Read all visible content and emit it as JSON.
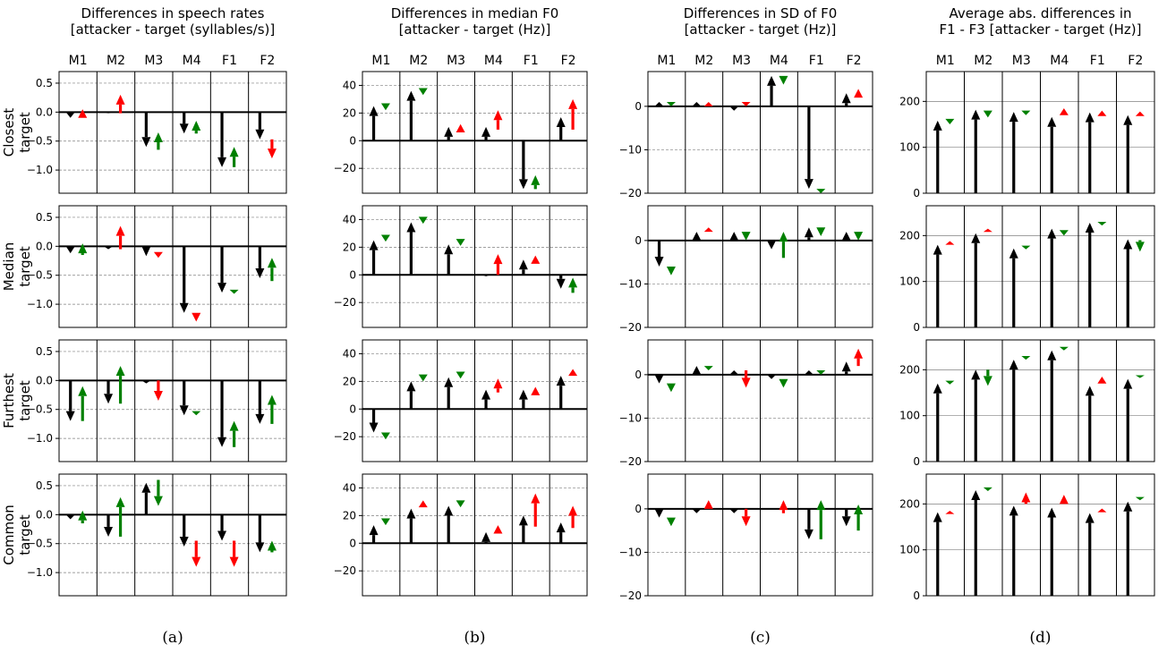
{
  "chart_data": {
    "type": "arrow-grid",
    "columns": [
      "M1",
      "M2",
      "M3",
      "M4",
      "F1",
      "F2"
    ],
    "rows": [
      "Closest\ntarget",
      "Median\ntarget",
      "Furthest\ntarget",
      "Common\ntarget"
    ],
    "colors": {
      "base": "#000000",
      "better": "#008000",
      "worse": "#ff0000"
    },
    "panels": [
      {
        "label": "(a)",
        "title": [
          "Differences in speech rates",
          "[attacker - target (syllables/s)]"
        ],
        "ylim": [
          -1.4,
          0.7
        ],
        "yticks": [
          0.5,
          0.0,
          -0.5,
          -1.0
        ],
        "ytick_labels": [
          "0.5",
          "0.0",
          "−0.5",
          "−1.0"
        ],
        "grid": "dashed",
        "cells": [
          [
            {
              "b": -0.1,
              "e": [
                -0.1,
                0.05
              ],
              "c": "worse"
            },
            {
              "b": -0.02,
              "e": [
                -0.02,
                0.3
              ],
              "c": "worse"
            },
            {
              "b": -0.6,
              "e": [
                -0.65,
                -0.35
              ],
              "c": "better"
            },
            {
              "b": -0.37,
              "e": [
                -0.37,
                -0.15
              ],
              "c": "better"
            },
            {
              "b": -0.95,
              "e": [
                -0.95,
                -0.6
              ],
              "c": "better"
            },
            {
              "b": -0.47,
              "e": [
                -0.47,
                -0.8
              ],
              "c": "worse"
            }
          ],
          [
            {
              "b": -0.12,
              "e": [
                -0.15,
                0.05
              ],
              "c": "better"
            },
            {
              "b": -0.05,
              "e": [
                -0.05,
                0.35
              ],
              "c": "worse"
            },
            {
              "b": -0.17,
              "e": [
                -0.1,
                -0.2
              ],
              "c": "worse"
            },
            {
              "b": -1.15,
              "e": [
                -1.15,
                -1.3
              ],
              "c": "worse"
            },
            {
              "b": -0.8,
              "e": [
                -0.75,
                -0.82
              ],
              "c": "better"
            },
            {
              "b": -0.55,
              "e": [
                -0.6,
                -0.2
              ],
              "c": "better"
            }
          ],
          [
            {
              "b": -0.7,
              "e": [
                -0.7,
                -0.1
              ],
              "c": "better"
            },
            {
              "b": -0.4,
              "e": [
                -0.4,
                0.25
              ],
              "c": "better"
            },
            {
              "b": -0.05,
              "e": [
                0.0,
                -0.35
              ],
              "c": "worse"
            },
            {
              "b": -0.6,
              "e": [
                -0.53,
                -0.6
              ],
              "c": "better"
            },
            {
              "b": -1.15,
              "e": [
                -1.15,
                -0.7
              ],
              "c": "better"
            },
            {
              "b": -0.75,
              "e": [
                -0.75,
                -0.25
              ],
              "c": "better"
            }
          ],
          [
            {
              "b": -0.08,
              "e": [
                -0.15,
                0.07
              ],
              "c": "better"
            },
            {
              "b": -0.38,
              "e": [
                -0.38,
                0.3
              ],
              "c": "better"
            },
            {
              "b": 0.55,
              "e": [
                0.6,
                0.15
              ],
              "c": "better"
            },
            {
              "b": -0.55,
              "e": [
                -0.45,
                -0.9
              ],
              "c": "worse"
            },
            {
              "b": -0.45,
              "e": [
                -0.45,
                -0.9
              ],
              "c": "worse"
            },
            {
              "b": -0.65,
              "e": [
                -0.65,
                -0.45
              ],
              "c": "better"
            }
          ]
        ]
      },
      {
        "label": "(b)",
        "title": [
          "Differences in median F0",
          "[attacker - target (Hz)]"
        ],
        "ylim": [
          -38,
          50
        ],
        "yticks": [
          40,
          20,
          0,
          -20
        ],
        "ytick_labels": [
          "40",
          "20",
          "0",
          "−20"
        ],
        "grid": "dashed",
        "cells": [
          [
            {
              "b": 25,
              "e": [
                27,
                22
              ],
              "c": "better"
            },
            {
              "b": 36,
              "e": [
                38,
                33
              ],
              "c": "better"
            },
            {
              "b": 10,
              "e": [
                6,
                12
              ],
              "c": "worse"
            },
            {
              "b": 10,
              "e": [
                8,
                22
              ],
              "c": "worse"
            },
            {
              "b": -35,
              "e": [
                -35,
                -25
              ],
              "c": "better"
            },
            {
              "b": 17,
              "e": [
                8,
                30
              ],
              "c": "worse"
            }
          ],
          [
            {
              "b": 25,
              "e": [
                29,
                24
              ],
              "c": "better"
            },
            {
              "b": 38,
              "e": [
                42,
                37
              ],
              "c": "better"
            },
            {
              "b": 22,
              "e": [
                26,
                21
              ],
              "c": "better"
            },
            {
              "b": -1,
              "e": [
                0,
                15
              ],
              "c": "worse"
            },
            {
              "b": 11,
              "e": [
                8,
                14
              ],
              "c": "worse"
            },
            {
              "b": -10,
              "e": [
                -13,
                -2
              ],
              "c": "better"
            }
          ],
          [
            {
              "b": -17,
              "e": [
                -17,
                -22
              ],
              "c": "better"
            },
            {
              "b": 20,
              "e": [
                25,
                20
              ],
              "c": "better"
            },
            {
              "b": 23,
              "e": [
                27,
                22
              ],
              "c": "better"
            },
            {
              "b": 14,
              "e": [
                12,
                22
              ],
              "c": "worse"
            },
            {
              "b": 14,
              "e": [
                10,
                16
              ],
              "c": "worse"
            },
            {
              "b": 24,
              "e": [
                24,
                29
              ],
              "c": "worse"
            }
          ],
          [
            {
              "b": 13,
              "e": [
                18,
                13
              ],
              "c": "better"
            },
            {
              "b": 25,
              "e": [
                26,
                31
              ],
              "c": "worse"
            },
            {
              "b": 27,
              "e": [
                31,
                26
              ],
              "c": "better"
            },
            {
              "b": 8,
              "e": [
                7,
                13
              ],
              "c": "worse"
            },
            {
              "b": 20,
              "e": [
                12,
                36
              ],
              "c": "worse"
            },
            {
              "b": 15,
              "e": [
                11,
                27
              ],
              "c": "worse"
            }
          ]
        ]
      },
      {
        "label": "(c)",
        "title": [
          "Differences in SD of F0",
          "[attacker - target (Hz)]"
        ],
        "ylim": [
          -20,
          8
        ],
        "yticks": [
          0,
          -10,
          -20
        ],
        "ytick_labels": [
          "0",
          "−10",
          "−20"
        ],
        "grid": "dashed",
        "cells": [
          [
            {
              "b": 1,
              "e": [
                1,
                0
              ],
              "c": "better"
            },
            {
              "b": 1,
              "e": [
                0,
                1
              ],
              "c": "worse"
            },
            {
              "b": -1,
              "e": [
                1,
                0
              ],
              "c": "worse"
            },
            {
              "b": 7,
              "e": [
                7,
                5
              ],
              "c": "better"
            },
            {
              "b": -19,
              "e": [
                -19,
                -20
              ],
              "c": "better"
            },
            {
              "b": 3,
              "e": [
                2,
                4
              ],
              "c": "worse"
            }
          ],
          [
            {
              "b": -6,
              "e": [
                -6,
                -8
              ],
              "c": "better"
            },
            {
              "b": 2,
              "e": [
                2,
                3
              ],
              "c": "worse"
            },
            {
              "b": 2,
              "e": [
                2,
                0
              ],
              "c": "better"
            },
            {
              "b": -2,
              "e": [
                -4,
                2
              ],
              "c": "better"
            },
            {
              "b": 3,
              "e": [
                3,
                1
              ],
              "c": "better"
            },
            {
              "b": 2,
              "e": [
                2,
                0
              ],
              "c": "better"
            }
          ],
          [
            {
              "b": -2,
              "e": [
                -2,
                -4
              ],
              "c": "better"
            },
            {
              "b": 2,
              "e": [
                2,
                1
              ],
              "c": "better"
            },
            {
              "b": 1,
              "e": [
                1,
                -3
              ],
              "c": "worse"
            },
            {
              "b": -1,
              "e": [
                -1,
                -3
              ],
              "c": "better"
            },
            {
              "b": 1,
              "e": [
                1,
                0
              ],
              "c": "better"
            },
            {
              "b": 3,
              "e": [
                2,
                6
              ],
              "c": "worse"
            }
          ],
          [
            {
              "b": -2,
              "e": [
                -2,
                -4
              ],
              "c": "better"
            },
            {
              "b": -1,
              "e": [
                0,
                2
              ],
              "c": "worse"
            },
            {
              "b": -1,
              "e": [
                0,
                -4
              ],
              "c": "worse"
            },
            {
              "b": 0,
              "e": [
                -1,
                2
              ],
              "c": "worse"
            },
            {
              "b": -7,
              "e": [
                -7,
                2
              ],
              "c": "better"
            },
            {
              "b": -4,
              "e": [
                -5,
                1
              ],
              "c": "better"
            }
          ]
        ]
      },
      {
        "label": "(d)",
        "title": [
          "Average abs. differences in",
          "F1 - F3 [attacker - target (Hz)]"
        ],
        "ylim": [
          0,
          265
        ],
        "yticks": [
          200,
          100,
          0
        ],
        "ytick_labels": [
          "200",
          "100",
          "0"
        ],
        "grid": "solid",
        "cells": [
          [
            {
              "b": 158,
              "e": [
                162,
                150
              ],
              "c": "better"
            },
            {
              "b": 182,
              "e": [
                180,
                165
              ],
              "c": "better"
            },
            {
              "b": 177,
              "e": [
                180,
                170
              ],
              "c": "better"
            },
            {
              "b": 166,
              "e": [
                170,
                185
              ],
              "c": "worse"
            },
            {
              "b": 176,
              "e": [
                168,
                180
              ],
              "c": "worse"
            },
            {
              "b": 170,
              "e": [
                168,
                178
              ],
              "c": "worse"
            }
          ],
          [
            {
              "b": 180,
              "e": [
                180,
                188
              ],
              "c": "worse"
            },
            {
              "b": 205,
              "e": [
                208,
                215
              ],
              "c": "worse"
            },
            {
              "b": 172,
              "e": [
                178,
                170
              ],
              "c": "better"
            },
            {
              "b": 215,
              "e": [
                212,
                200
              ],
              "c": "better"
            },
            {
              "b": 228,
              "e": [
                230,
                222
              ],
              "c": "better"
            },
            {
              "b": 192,
              "e": [
                190,
                165
              ],
              "c": "better"
            }
          ],
          [
            {
              "b": 170,
              "e": [
                176,
                168
              ],
              "c": "better"
            },
            {
              "b": 200,
              "e": [
                200,
                165
              ],
              "c": "better"
            },
            {
              "b": 222,
              "e": [
                230,
                222
              ],
              "c": "better"
            },
            {
              "b": 242,
              "e": [
                250,
                242
              ],
              "c": "better"
            },
            {
              "b": 165,
              "e": [
                170,
                185
              ],
              "c": "worse"
            },
            {
              "b": 180,
              "e": [
                188,
                182
              ],
              "c": "better"
            }
          ],
          [
            {
              "b": 182,
              "e": [
                178,
                185
              ],
              "c": "worse"
            },
            {
              "b": 230,
              "e": [
                236,
                228
              ],
              "c": "better"
            },
            {
              "b": 196,
              "e": [
                200,
                225
              ],
              "c": "worse"
            },
            {
              "b": 192,
              "e": [
                200,
                220
              ],
              "c": "worse"
            },
            {
              "b": 180,
              "e": [
                182,
                190
              ],
              "c": "worse"
            },
            {
              "b": 205,
              "e": [
                215,
                208
              ],
              "c": "better"
            }
          ]
        ]
      }
    ]
  }
}
